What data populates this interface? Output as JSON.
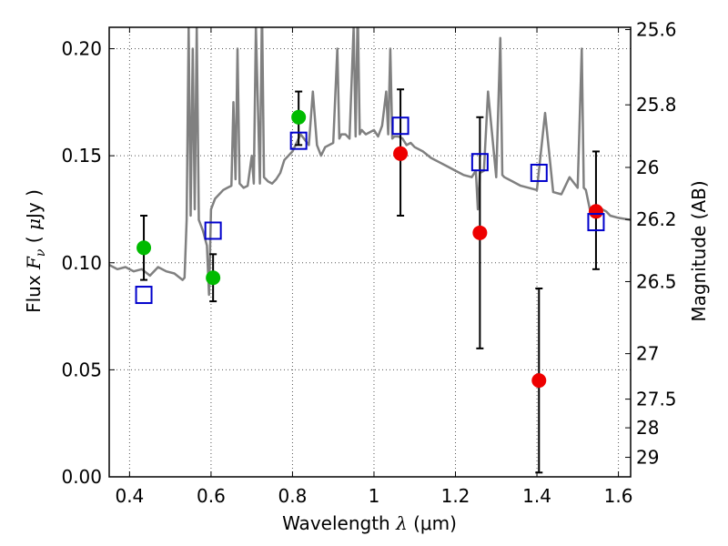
{
  "chart_data": {
    "type": "scatter",
    "xlabel_text": "Wavelength",
    "xlabel_symbol": "λ",
    "xlabel_unit": "(μm)",
    "ylabel_text": "Flux",
    "ylabel_symbol": "F",
    "ylabel_sub": "ν",
    "ylabel_unit_open": "(",
    "ylabel_unit_mu": "μ",
    "ylabel_unit_rest": "Jy )",
    "y2label": "Magnitude (AB)",
    "xlim": [
      0.35,
      1.63
    ],
    "ylim": [
      0.0,
      0.21
    ],
    "grid": true,
    "x_ticks": [
      {
        "value": 0.4,
        "label": "0.4"
      },
      {
        "value": 0.6,
        "label": "0.6"
      },
      {
        "value": 0.8,
        "label": "0.8"
      },
      {
        "value": 1.0,
        "label": "1"
      },
      {
        "value": 1.2,
        "label": "1.2"
      },
      {
        "value": 1.4,
        "label": "1.4"
      },
      {
        "value": 1.6,
        "label": "1.6"
      }
    ],
    "y_ticks": [
      {
        "value": 0.0,
        "label": "0.00"
      },
      {
        "value": 0.05,
        "label": "0.05"
      },
      {
        "value": 0.1,
        "label": "0.10"
      },
      {
        "value": 0.15,
        "label": "0.15"
      },
      {
        "value": 0.2,
        "label": "0.20"
      }
    ],
    "y2_ticks": [
      {
        "mag": 25.6,
        "label": "25.6"
      },
      {
        "mag": 25.8,
        "label": "25.8"
      },
      {
        "mag": 26.0,
        "label": "26"
      },
      {
        "mag": 26.2,
        "label": "26.2"
      },
      {
        "mag": 26.5,
        "label": "26.5"
      },
      {
        "mag": 27.0,
        "label": "27"
      },
      {
        "mag": 27.5,
        "label": "27.5"
      },
      {
        "mag": 28.0,
        "label": "28"
      },
      {
        "mag": 29.0,
        "label": "29"
      }
    ],
    "series": [
      {
        "kind": "points",
        "color": "#00bb00",
        "marker": "circle",
        "x": [
          0.435,
          0.605,
          0.815
        ],
        "y": [
          0.107,
          0.093,
          0.168
        ],
        "yerr_low": [
          0.092,
          0.082,
          0.155
        ],
        "yerr_high": [
          0.122,
          0.104,
          0.18
        ]
      },
      {
        "kind": "points",
        "color": "#ee0000",
        "marker": "circle",
        "x": [
          1.065,
          1.26,
          1.405,
          1.545
        ],
        "y": [
          0.151,
          0.114,
          0.045,
          0.124
        ],
        "yerr_low": [
          0.122,
          0.06,
          0.002,
          0.097
        ],
        "yerr_high": [
          0.181,
          0.168,
          0.088,
          0.152
        ]
      },
      {
        "kind": "points",
        "color": "#0000cc",
        "marker": "square-open",
        "x": [
          0.435,
          0.605,
          0.815,
          1.065,
          1.26,
          1.405,
          1.545
        ],
        "y": [
          0.085,
          0.115,
          0.157,
          0.164,
          0.147,
          0.142,
          0.119
        ]
      },
      {
        "kind": "spectrum",
        "color": "#808080",
        "x": [
          0.35,
          0.37,
          0.39,
          0.41,
          0.43,
          0.45,
          0.47,
          0.49,
          0.51,
          0.53,
          0.535,
          0.54,
          0.545,
          0.55,
          0.555,
          0.56,
          0.565,
          0.57,
          0.58,
          0.59,
          0.595,
          0.6,
          0.61,
          0.62,
          0.63,
          0.64,
          0.65,
          0.655,
          0.66,
          0.665,
          0.67,
          0.68,
          0.69,
          0.7,
          0.705,
          0.71,
          0.72,
          0.725,
          0.73,
          0.74,
          0.75,
          0.76,
          0.77,
          0.78,
          0.8,
          0.82,
          0.84,
          0.85,
          0.86,
          0.87,
          0.88,
          0.9,
          0.91,
          0.915,
          0.92,
          0.93,
          0.94,
          0.95,
          0.955,
          0.96,
          0.965,
          0.97,
          0.98,
          0.99,
          1.0,
          1.01,
          1.02,
          1.03,
          1.035,
          1.04,
          1.045,
          1.05,
          1.06,
          1.07,
          1.08,
          1.09,
          1.1,
          1.12,
          1.14,
          1.16,
          1.18,
          1.2,
          1.22,
          1.24,
          1.25,
          1.255,
          1.26,
          1.27,
          1.28,
          1.3,
          1.31,
          1.315,
          1.32,
          1.34,
          1.36,
          1.38,
          1.4,
          1.42,
          1.44,
          1.46,
          1.48,
          1.5,
          1.51,
          1.515,
          1.52,
          1.53,
          1.55,
          1.57,
          1.58,
          1.6,
          1.63
        ],
        "y": [
          0.099,
          0.097,
          0.098,
          0.096,
          0.097,
          0.094,
          0.098,
          0.096,
          0.095,
          0.092,
          0.093,
          0.12,
          0.21,
          0.122,
          0.2,
          0.125,
          0.21,
          0.12,
          0.115,
          0.108,
          0.085,
          0.125,
          0.13,
          0.132,
          0.134,
          0.135,
          0.136,
          0.175,
          0.139,
          0.2,
          0.137,
          0.135,
          0.136,
          0.15,
          0.137,
          0.21,
          0.137,
          0.22,
          0.14,
          0.138,
          0.137,
          0.139,
          0.142,
          0.148,
          0.152,
          0.16,
          0.155,
          0.18,
          0.155,
          0.15,
          0.154,
          0.156,
          0.2,
          0.158,
          0.16,
          0.16,
          0.158,
          0.21,
          0.159,
          0.22,
          0.16,
          0.162,
          0.16,
          0.161,
          0.162,
          0.159,
          0.164,
          0.18,
          0.16,
          0.2,
          0.158,
          0.159,
          0.159,
          0.158,
          0.155,
          0.156,
          0.154,
          0.152,
          0.149,
          0.147,
          0.145,
          0.143,
          0.141,
          0.14,
          0.143,
          0.125,
          0.142,
          0.143,
          0.18,
          0.14,
          0.205,
          0.141,
          0.14,
          0.138,
          0.136,
          0.135,
          0.134,
          0.17,
          0.133,
          0.132,
          0.14,
          0.135,
          0.2,
          0.135,
          0.134,
          0.125,
          0.126,
          0.124,
          0.122,
          0.121,
          0.12
        ]
      }
    ]
  }
}
